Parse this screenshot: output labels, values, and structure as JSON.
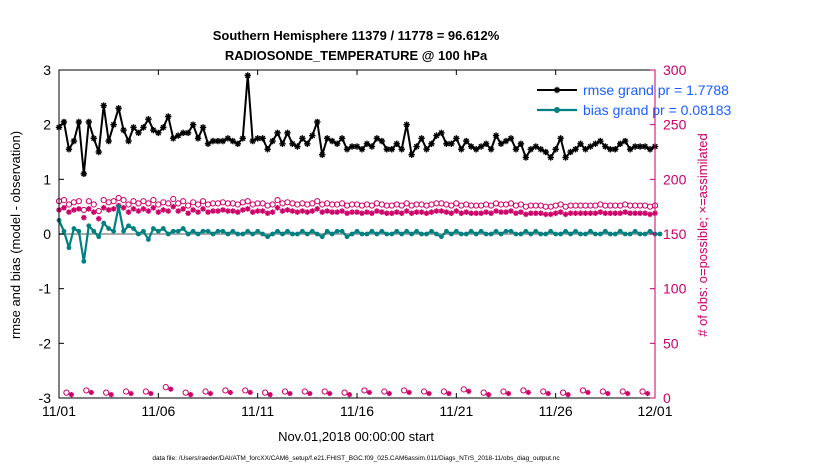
{
  "chart_data": {
    "type": "line",
    "title_line1": "Southern Hemisphere 11379 / 11778 = 96.612%",
    "title_line2": "RADIOSONDE_TEMPERATURE @ 100 hPa",
    "xlabel": "Nov.01,2018 00:00:00 start",
    "ylabel_left": "rmse and bias (model - observation)",
    "ylabel_right": "# of obs: o=possible; ×=assimilated",
    "footer": "data file: /Users/raeder/DAI/ATM_forcXX/CAM6_setup/f.e21.FHIST_BGC.f09_025.CAM6assim.011/Diags_NTrS_2018-11/obs_diag_output.nc",
    "xlim": [
      0,
      30
    ],
    "ylim_left": [
      -3,
      3
    ],
    "ylim_right": [
      0,
      300
    ],
    "x_ticks": [
      0,
      5,
      10,
      15,
      20,
      25,
      30
    ],
    "x_tick_labels": [
      "11/01",
      "11/06",
      "11/11",
      "11/16",
      "11/21",
      "11/26",
      "12/01"
    ],
    "y_ticks_left": [
      -3,
      -2,
      -1,
      0,
      1,
      2,
      3
    ],
    "y_tick_labels_left": [
      "-3",
      "-2",
      "-1",
      "0",
      "1",
      "2",
      "3"
    ],
    "y_ticks_right": [
      0,
      50,
      100,
      150,
      200,
      250,
      300
    ],
    "y_tick_labels_right": [
      "0",
      "50",
      "100",
      "150",
      "200",
      "250",
      "300"
    ],
    "legend": {
      "position": "top-right",
      "rmse_label": "rmse grand pr = 1.7788",
      "bias_label": "bias grand pr = 0.08183"
    },
    "colors": {
      "rmse": "#000000",
      "bias": "#008080",
      "obs": "#cc0066",
      "legend_text": "#1a5fff",
      "zero_line": "#aaaaaa"
    },
    "step_days": 0.25,
    "rmse": [
      1.95,
      2.05,
      1.55,
      1.7,
      2.05,
      1.1,
      2.05,
      1.75,
      1.5,
      2.35,
      1.7,
      2.0,
      2.3,
      1.9,
      1.7,
      1.95,
      1.85,
      1.95,
      2.1,
      1.9,
      1.85,
      1.95,
      2.15,
      1.75,
      1.8,
      1.85,
      1.85,
      2.0,
      1.75,
      1.95,
      1.65,
      1.7,
      1.7,
      1.7,
      1.75,
      1.7,
      1.65,
      1.75,
      2.9,
      1.7,
      1.75,
      1.75,
      1.55,
      1.7,
      1.85,
      1.65,
      1.85,
      1.65,
      1.6,
      1.75,
      1.65,
      1.8,
      2.05,
      1.45,
      1.75,
      1.7,
      1.65,
      1.75,
      1.55,
      1.6,
      1.6,
      1.55,
      1.65,
      1.6,
      1.75,
      1.7,
      1.55,
      1.55,
      1.65,
      1.55,
      2.0,
      1.45,
      1.6,
      1.75,
      1.55,
      1.65,
      1.8,
      1.85,
      1.65,
      1.65,
      1.75,
      1.55,
      1.7,
      1.6,
      1.55,
      1.6,
      1.65,
      1.55,
      1.8,
      1.65,
      1.7,
      1.75,
      1.55,
      1.65,
      1.4,
      1.55,
      1.6,
      1.55,
      1.5,
      1.4,
      1.55,
      1.75,
      1.4,
      1.5,
      1.55,
      1.65,
      1.55,
      1.6,
      1.65,
      1.7,
      1.6,
      1.55,
      1.55,
      1.65,
      1.7,
      1.55,
      1.6,
      1.6,
      1.6,
      1.55,
      1.6
    ],
    "bias": [
      0.25,
      0.05,
      -0.25,
      0.1,
      0.05,
      -0.5,
      0.15,
      0.05,
      -0.05,
      0.2,
      0.1,
      0.05,
      0.5,
      0.05,
      0.15,
      0.1,
      0.0,
      0.05,
      -0.1,
      0.1,
      0.05,
      0.1,
      0.0,
      0.05,
      0.05,
      0.1,
      0.0,
      0.05,
      0.0,
      0.05,
      0.05,
      0.0,
      0.05,
      0.05,
      0.0,
      0.05,
      0.0,
      0.0,
      0.05,
      0.0,
      0.05,
      0.0,
      -0.05,
      0.0,
      0.05,
      0.0,
      0.05,
      0.0,
      0.0,
      0.05,
      0.0,
      0.05,
      0.0,
      -0.05,
      0.05,
      0.0,
      0.05,
      0.05,
      -0.05,
      0.0,
      0.05,
      0.0,
      0.0,
      0.05,
      0.0,
      0.05,
      0.0,
      0.0,
      0.05,
      0.0,
      0.05,
      0.0,
      0.05,
      0.0,
      0.0,
      0.05,
      0.0,
      -0.05,
      0.05,
      0.0,
      0.05,
      0.0,
      0.0,
      0.05,
      0.0,
      0.05,
      0.0,
      0.0,
      0.05,
      0.0,
      0.05,
      0.05,
      0.0,
      0.0,
      0.05,
      0.0,
      0.05,
      0.0,
      0.0,
      0.05,
      0.0,
      0.0,
      0.05,
      0.0,
      0.05,
      0.0,
      0.0,
      0.05,
      0.0,
      0.0,
      0.05,
      0.0,
      0.0,
      0.05,
      0.0,
      0.0,
      0.05,
      0.0,
      0.0,
      0.05,
      0.0,
      0.0
    ],
    "possible": [
      180,
      181,
      177,
      179,
      180,
      172,
      180,
      177,
      171,
      181,
      179,
      180,
      183,
      181,
      177,
      180,
      178,
      180,
      178,
      181,
      177,
      179,
      178,
      182,
      178,
      180,
      176,
      179,
      177,
      180,
      177,
      178,
      178,
      179,
      178,
      178,
      177,
      179,
      180,
      177,
      178,
      178,
      176,
      177,
      181,
      178,
      179,
      178,
      177,
      178,
      177,
      178,
      180,
      177,
      178,
      177,
      177,
      178,
      176,
      177,
      177,
      176,
      177,
      176,
      178,
      177,
      176,
      176,
      177,
      176,
      178,
      176,
      177,
      177,
      176,
      177,
      178,
      178,
      177,
      176,
      178,
      176,
      177,
      176,
      176,
      176,
      177,
      176,
      178,
      177,
      177,
      178,
      176,
      177,
      175,
      176,
      176,
      176,
      175,
      175,
      176,
      177,
      175,
      176,
      176,
      176,
      176,
      176,
      176,
      177,
      176,
      176,
      176,
      176,
      177,
      176,
      176,
      176,
      176,
      175,
      176
    ],
    "assimilated": [
      172,
      174,
      170,
      172,
      173,
      165,
      173,
      170,
      164,
      174,
      172,
      173,
      176,
      174,
      170,
      173,
      171,
      173,
      171,
      174,
      170,
      172,
      171,
      175,
      171,
      173,
      169,
      172,
      170,
      173,
      170,
      171,
      171,
      172,
      171,
      171,
      170,
      172,
      173,
      170,
      171,
      171,
      169,
      170,
      174,
      171,
      172,
      171,
      170,
      171,
      170,
      171,
      173,
      170,
      171,
      170,
      170,
      171,
      169,
      170,
      170,
      169,
      170,
      169,
      171,
      170,
      169,
      169,
      170,
      169,
      171,
      169,
      170,
      170,
      169,
      170,
      171,
      171,
      170,
      169,
      171,
      169,
      170,
      169,
      169,
      169,
      170,
      169,
      171,
      170,
      170,
      171,
      169,
      170,
      168,
      169,
      169,
      169,
      168,
      168,
      169,
      170,
      168,
      169,
      169,
      169,
      169,
      169,
      169,
      170,
      169,
      169,
      169,
      169,
      170,
      169,
      169,
      169,
      169,
      168,
      169
    ],
    "low_obs": [
      4,
      6,
      4,
      5,
      5,
      9,
      4,
      5,
      6,
      6,
      4,
      5,
      5,
      5,
      4,
      6,
      5,
      6,
      5,
      5,
      7,
      4,
      5,
      6,
      5,
      4,
      6,
      5,
      5,
      5
    ]
  }
}
